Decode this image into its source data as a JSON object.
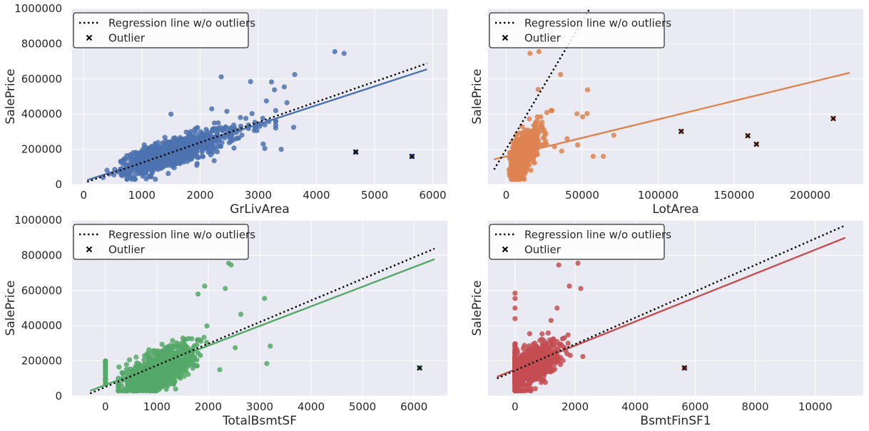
{
  "figure": {
    "legend_labels": [
      "Regression line w/o outliers",
      "Outlier"
    ],
    "colors": {
      "background": "#EAEAF2",
      "grid": "#FFFFFF",
      "regression_dotted": "#000000",
      "outlier_marker": "#000000"
    }
  },
  "chart_data": [
    {
      "type": "scatter",
      "xlabel": "GrLivArea",
      "ylabel": "SalePrice",
      "color": "#4C72B0",
      "xlim": [
        -200,
        6250
      ],
      "ylim": [
        0,
        1000000
      ],
      "xticks": [
        0,
        1000,
        2000,
        3000,
        4000,
        5000,
        6000
      ],
      "yticks": [
        0,
        200000,
        400000,
        600000,
        800000,
        1000000
      ],
      "show_yticklabels": true,
      "legend_position": "upper left",
      "regression_fit": {
        "x": [
          60,
          5900
        ],
        "y": [
          25000,
          655000
        ]
      },
      "regression_wo_outliers": {
        "x": [
          60,
          5900
        ],
        "y": [
          15000,
          688000
        ]
      },
      "outliers": [
        {
          "x": 4676,
          "y": 184750
        },
        {
          "x": 5642,
          "y": 160000
        }
      ],
      "key_points": [
        {
          "x": 4316,
          "y": 755000
        },
        {
          "x": 4476,
          "y": 745000
        },
        {
          "x": 3627,
          "y": 625000
        },
        {
          "x": 2364,
          "y": 611657
        },
        {
          "x": 3447,
          "y": 555000
        },
        {
          "x": 3228,
          "y": 582933
        },
        {
          "x": 2868,
          "y": 584500
        },
        {
          "x": 3493,
          "y": 465000
        },
        {
          "x": 3279,
          "y": 538000
        },
        {
          "x": 3140,
          "y": 475000
        },
        {
          "x": 3608,
          "y": 325000
        },
        {
          "x": 3395,
          "y": 200000
        },
        {
          "x": 3086,
          "y": 230000
        },
        {
          "x": 3112,
          "y": 205000
        },
        {
          "x": 334,
          "y": 39300
        },
        {
          "x": 438,
          "y": 60000
        },
        {
          "x": 520,
          "y": 55000
        },
        {
          "x": 630,
          "y": 87000
        },
        {
          "x": 2200,
          "y": 430000
        },
        {
          "x": 1500,
          "y": 400000
        }
      ]
    },
    {
      "type": "scatter",
      "xlabel": "LotArea",
      "ylabel": "SalePrice",
      "color": "#DD8452",
      "xlim": [
        -12000,
        235000
      ],
      "ylim": [
        0,
        1000000
      ],
      "xticks": [
        0,
        50000,
        100000,
        150000,
        200000
      ],
      "yticks": [
        0,
        200000,
        400000,
        600000,
        800000,
        1000000
      ],
      "show_yticklabels": false,
      "legend_position": "upper left",
      "regression_fit": {
        "x": [
          -8000,
          226000
        ],
        "y": [
          143000,
          635000
        ]
      },
      "regression_wo_outliers": {
        "x": [
          -8000,
          55000
        ],
        "y": [
          85000,
          1000000
        ]
      },
      "outliers": [
        {
          "x": 115149,
          "y": 302000
        },
        {
          "x": 159000,
          "y": 277000
        },
        {
          "x": 164660,
          "y": 228950
        },
        {
          "x": 215245,
          "y": 375000
        }
      ],
      "key_points": [
        {
          "x": 15623,
          "y": 745000
        },
        {
          "x": 21535,
          "y": 755000
        },
        {
          "x": 35760,
          "y": 625000
        },
        {
          "x": 53504,
          "y": 538000
        },
        {
          "x": 53227,
          "y": 403000
        },
        {
          "x": 46589,
          "y": 402000
        },
        {
          "x": 50271,
          "y": 385000
        },
        {
          "x": 70761,
          "y": 280000
        },
        {
          "x": 63887,
          "y": 160000
        },
        {
          "x": 57200,
          "y": 160000
        },
        {
          "x": 47007,
          "y": 225000
        },
        {
          "x": 40094,
          "y": 260000
        },
        {
          "x": 36500,
          "y": 190000
        },
        {
          "x": 31770,
          "y": 215000
        },
        {
          "x": 25095,
          "y": 275000
        },
        {
          "x": 21000,
          "y": 540000
        }
      ]
    },
    {
      "type": "scatter",
      "xlabel": "TotalBsmtSF",
      "ylabel": "SalePrice",
      "color": "#55A868",
      "xlim": [
        -650,
        6650
      ],
      "ylim": [
        0,
        1000000
      ],
      "xticks": [
        0,
        1000,
        2000,
        3000,
        4000,
        5000,
        6000
      ],
      "yticks": [
        0,
        200000,
        400000,
        600000,
        800000,
        1000000
      ],
      "show_yticklabels": true,
      "legend_position": "upper left",
      "regression_fit": {
        "x": [
          -300,
          6400
        ],
        "y": [
          30000,
          778000
        ]
      },
      "regression_wo_outliers": {
        "x": [
          -300,
          6400
        ],
        "y": [
          15000,
          838000
        ]
      },
      "outliers": [
        {
          "x": 6110,
          "y": 160000
        }
      ],
      "key_points": [
        {
          "x": 2444,
          "y": 745000
        },
        {
          "x": 2396,
          "y": 755000
        },
        {
          "x": 1930,
          "y": 625000
        },
        {
          "x": 2330,
          "y": 611657
        },
        {
          "x": 3094,
          "y": 555000
        },
        {
          "x": 2633,
          "y": 465000
        },
        {
          "x": 3138,
          "y": 185000
        },
        {
          "x": 3206,
          "y": 284000
        },
        {
          "x": 2524,
          "y": 275000
        },
        {
          "x": 2223,
          "y": 150000
        },
        {
          "x": 0,
          "y": 200000
        },
        {
          "x": 0,
          "y": 175000
        },
        {
          "x": 0,
          "y": 150000
        },
        {
          "x": 0,
          "y": 130000
        },
        {
          "x": 0,
          "y": 115000
        },
        {
          "x": 0,
          "y": 100000
        },
        {
          "x": 0,
          "y": 80000
        },
        {
          "x": 1800,
          "y": 580000
        }
      ]
    },
    {
      "type": "scatter",
      "xlabel": "BsmtFinSF1",
      "ylabel": "SalePrice",
      "color": "#C44E52",
      "xlim": [
        -900,
        11600
      ],
      "ylim": [
        0,
        1000000
      ],
      "xticks": [
        0,
        2000,
        4000,
        6000,
        8000,
        10000
      ],
      "yticks": [
        0,
        200000,
        400000,
        600000,
        800000,
        1000000
      ],
      "show_yticklabels": false,
      "legend_position": "upper left",
      "regression_fit": {
        "x": [
          -600,
          11000
        ],
        "y": [
          110000,
          900000
        ]
      },
      "regression_wo_outliers": {
        "x": [
          -600,
          11000
        ],
        "y": [
          100000,
          970000
        ]
      },
      "outliers": [
        {
          "x": 5644,
          "y": 160000
        }
      ],
      "key_points": [
        {
          "x": 1455,
          "y": 745000
        },
        {
          "x": 2096,
          "y": 755000
        },
        {
          "x": 2188,
          "y": 611657
        },
        {
          "x": 1810,
          "y": 625000
        },
        {
          "x": 2260,
          "y": 225000
        },
        {
          "x": 1767,
          "y": 300000
        },
        {
          "x": 0,
          "y": 585000
        },
        {
          "x": 0,
          "y": 555000
        },
        {
          "x": 0,
          "y": 500000
        },
        {
          "x": 0,
          "y": 440000
        },
        {
          "x": 0,
          "y": 60000
        },
        {
          "x": 0,
          "y": 40000
        },
        {
          "x": 1400,
          "y": 500000
        },
        {
          "x": 1200,
          "y": 430000
        }
      ]
    }
  ]
}
